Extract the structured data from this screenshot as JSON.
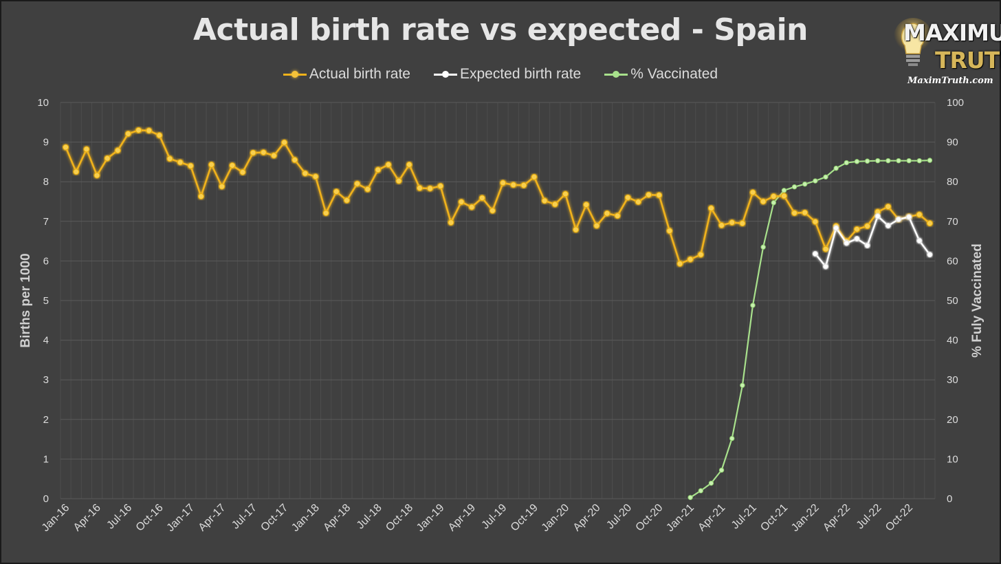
{
  "chart_data": {
    "type": "line",
    "title": "Actual birth rate vs expected - Spain",
    "y_left_label": "Births per 1000",
    "y_right_label": "% Fuly Vaccinated",
    "y_left_lim": [
      0,
      10
    ],
    "y_right_lim": [
      0,
      100
    ],
    "y_left_ticks": [
      "0",
      "1",
      "2",
      "3",
      "4",
      "5",
      "6",
      "7",
      "8",
      "9",
      "10"
    ],
    "y_right_ticks": [
      "0",
      "10",
      "20",
      "30",
      "40",
      "50",
      "60",
      "70",
      "80",
      "90",
      "100"
    ],
    "grid": true,
    "legend_position": "top-center",
    "x_tick_labels": [
      "Jan-16",
      "Apr-16",
      "Jul-16",
      "Oct-16",
      "Jan-17",
      "Apr-17",
      "Jul-17",
      "Oct-17",
      "Jan-18",
      "Apr-18",
      "Jul-18",
      "Oct-18",
      "Jan-19",
      "Apr-19",
      "Jul-19",
      "Oct-19",
      "Jan-20",
      "Apr-20",
      "Jul-20",
      "Oct-20",
      "Jan-21",
      "Apr-21",
      "Jul-21",
      "Oct-21",
      "Jan-22",
      "Apr-22",
      "Jul-22",
      "Oct-22"
    ],
    "start_month": "Jan-16",
    "series": [
      {
        "name": "Actual birth rate",
        "axis": "left",
        "color": "#f0b21a",
        "values": [
          8.87,
          8.25,
          8.82,
          8.16,
          8.59,
          8.79,
          9.21,
          9.3,
          9.29,
          9.17,
          8.58,
          8.49,
          8.4,
          7.63,
          8.43,
          7.88,
          8.41,
          8.24,
          8.73,
          8.74,
          8.66,
          8.99,
          8.55,
          8.21,
          8.13,
          7.21,
          7.75,
          7.53,
          7.95,
          7.81,
          8.3,
          8.43,
          8.02,
          8.43,
          7.84,
          7.83,
          7.89,
          6.97,
          7.49,
          7.36,
          7.59,
          7.27,
          7.97,
          7.92,
          7.91,
          8.12,
          7.52,
          7.43,
          7.69,
          6.79,
          7.42,
          6.89,
          7.2,
          7.14,
          7.6,
          7.49,
          7.67,
          7.66,
          6.76,
          5.93,
          6.04,
          6.16,
          7.33,
          6.9,
          6.97,
          6.95,
          7.73,
          7.5,
          7.63,
          7.64,
          7.21,
          7.22,
          6.99,
          6.3,
          6.88,
          6.5,
          6.8,
          6.88,
          7.24,
          7.37,
          7.05,
          7.12,
          7.17,
          6.95
        ]
      },
      {
        "name": "Expected birth rate",
        "axis": "left",
        "color": "#ffffff",
        "start_index": 72,
        "values": [
          6.18,
          5.86,
          6.83,
          6.45,
          6.56,
          6.39,
          7.13,
          6.89,
          7.05,
          7.11,
          6.51,
          6.16
        ]
      },
      {
        "name": "% Vaccinated",
        "axis": "right",
        "color": "#a8e18c",
        "start_index": 60,
        "values": [
          0.3,
          2.0,
          3.9,
          7.2,
          15.2,
          28.6,
          48.8,
          63.5,
          74.7,
          77.8,
          78.7,
          79.4,
          80.2,
          81.2,
          83.4,
          84.8,
          85.1,
          85.2,
          85.3,
          85.3,
          85.3,
          85.3,
          85.3,
          85.4
        ]
      }
    ]
  },
  "logo": {
    "line1": "MAXIMUM",
    "line2": "TRUTH",
    "url": "MaximTruth.com"
  }
}
